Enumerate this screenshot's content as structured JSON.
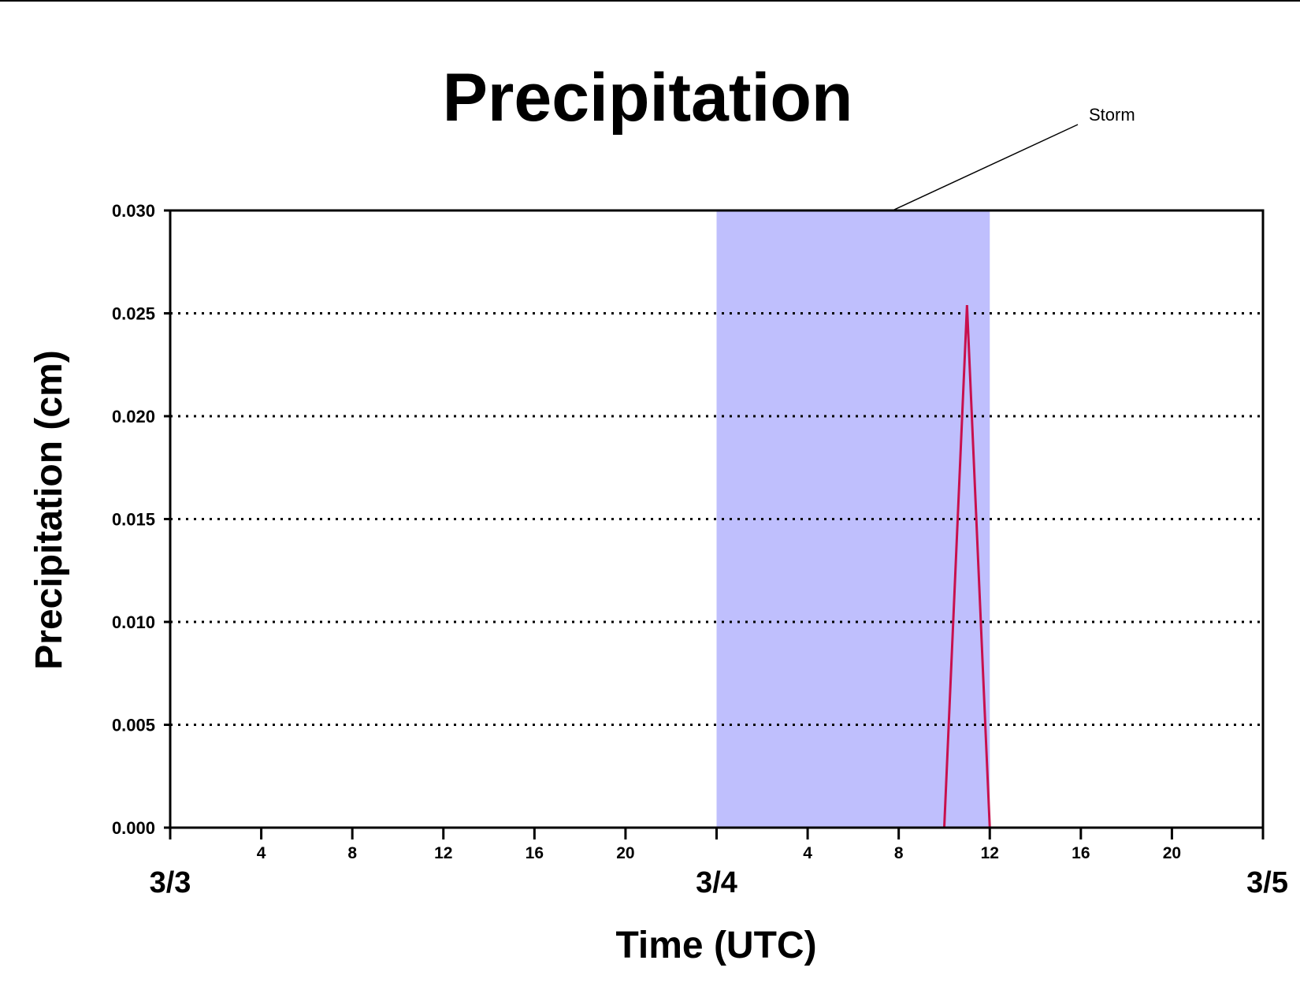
{
  "chart_data": {
    "type": "line",
    "title": "Precipitation",
    "xlabel": "Time (UTC)",
    "ylabel": "Precipitation (cm)",
    "ylim": [
      0,
      0.03
    ],
    "xlim": [
      "3/3 00:00",
      "3/5 00:00"
    ],
    "y_ticks": [
      "0.000",
      "0.005",
      "0.010",
      "0.015",
      "0.020",
      "0.025",
      "0.030"
    ],
    "x_hour_ticks": [
      {
        "hour": 4,
        "label": "4"
      },
      {
        "hour": 8,
        "label": "8"
      },
      {
        "hour": 12,
        "label": "12"
      },
      {
        "hour": 16,
        "label": "16"
      },
      {
        "hour": 20,
        "label": "20"
      },
      {
        "hour": 28,
        "label": "4"
      },
      {
        "hour": 32,
        "label": "8"
      },
      {
        "hour": 36,
        "label": "12"
      },
      {
        "hour": 40,
        "label": "16"
      },
      {
        "hour": 44,
        "label": "20"
      }
    ],
    "day_labels": [
      {
        "hour": 0,
        "label": "3/3"
      },
      {
        "hour": 24,
        "label": "3/4"
      },
      {
        "hour": 48,
        "label": "3/5"
      }
    ],
    "grid": "horizontal dotted",
    "shaded_region": {
      "label": "Storm",
      "x_start": "3/4 00:00",
      "x_end": "3/4 12:00",
      "color": "#bfbffd"
    },
    "series": [
      {
        "color": "#c8104d",
        "points": [
          {
            "x": "3/3 00:00",
            "y": 0.0
          },
          {
            "x": "3/4 10:00",
            "y": 0.0
          },
          {
            "x": "3/4 11:00",
            "y": 0.0254
          },
          {
            "x": "3/4 12:00",
            "y": 0.0
          },
          {
            "x": "3/5 00:00",
            "y": 0.0
          }
        ]
      }
    ]
  }
}
